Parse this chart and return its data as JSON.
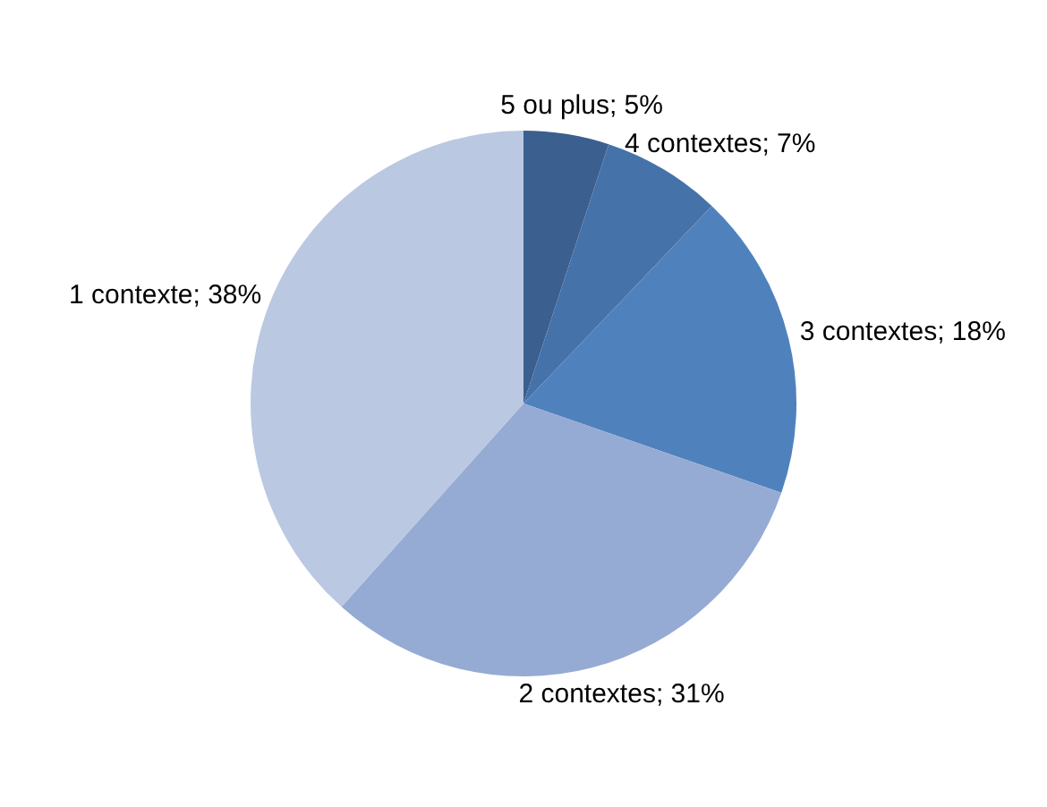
{
  "chart_data": {
    "type": "pie",
    "categories": [
      "5 ou plus",
      "4 contextes",
      "3 contextes",
      "2 contextes",
      "1 contexte"
    ],
    "values": [
      5,
      7,
      18,
      31,
      38
    ],
    "colors": [
      "#3b5f8f",
      "#4572a9",
      "#4f81bd",
      "#95abd3",
      "#bac8e1"
    ],
    "value_labels": [
      "5%",
      "7%",
      "18%",
      "31%",
      "38%"
    ],
    "legend": false
  }
}
